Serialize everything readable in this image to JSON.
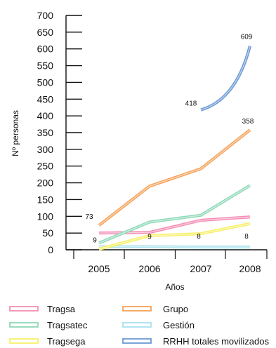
{
  "chart_data": {
    "type": "line",
    "title": "",
    "xlabel": "Años",
    "ylabel": "Nº personas",
    "x": [
      "2005",
      "2006",
      "2007",
      "2008"
    ],
    "ylim": [
      0,
      700
    ],
    "yticks": [
      "0",
      "50",
      "100",
      "150",
      "200",
      "250",
      "300",
      "350",
      "400",
      "450",
      "500",
      "550",
      "600",
      "650",
      "700"
    ],
    "grid": false,
    "legend_position": "bottom",
    "series": [
      {
        "name": "Tragsa",
        "color": "#f48fb5",
        "values": [
          50,
          52,
          88,
          98
        ]
      },
      {
        "name": "Grupo",
        "color": "#f5a25a",
        "values": [
          73,
          190,
          242,
          358
        ]
      },
      {
        "name": "Tragsatec",
        "color": "#8fd9b8",
        "values": [
          20,
          83,
          103,
          192
        ]
      },
      {
        "name": "Gestión",
        "color": "#a8e2ee",
        "values": [
          9,
          9,
          8,
          8
        ]
      },
      {
        "name": "Tragsega",
        "color": "#f7f06a",
        "values": [
          2,
          42,
          48,
          78
        ]
      },
      {
        "name": "RRHH totales movilizados",
        "color": "#6c9ad6",
        "values": [
          null,
          null,
          418,
          609
        ]
      }
    ],
    "data_labels": [
      {
        "series": "Grupo",
        "x": "2005",
        "text": "73",
        "value": 73
      },
      {
        "series": "Grupo",
        "x": "2008",
        "text": "358",
        "value": 358
      },
      {
        "series": "RRHH totales movilizados",
        "x": "2007",
        "text": "418",
        "value": 418
      },
      {
        "series": "RRHH totales movilizados",
        "x": "2008",
        "text": "609",
        "value": 609
      },
      {
        "series": "Gestión",
        "x": "2005",
        "text": "9",
        "value": 9
      },
      {
        "series": "Gestión",
        "x": "2006",
        "text": "9",
        "value": 9
      },
      {
        "series": "Gestión",
        "x": "2007",
        "text": "8",
        "value": 8
      },
      {
        "series": "Gestión",
        "x": "2008",
        "text": "8",
        "value": 8
      }
    ]
  }
}
